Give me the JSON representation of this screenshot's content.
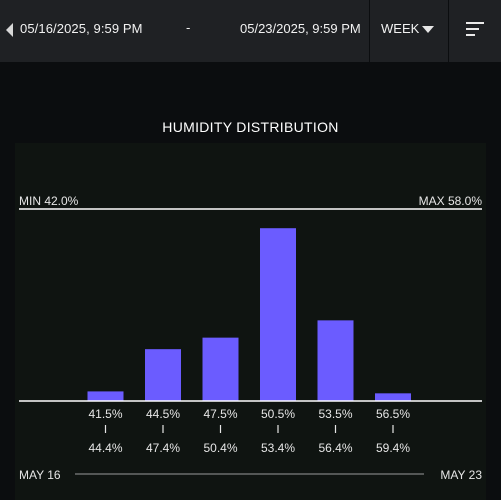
{
  "header": {
    "start_date": "05/16/2025, 9:59 PM",
    "separator": "-",
    "end_date": "05/23/2025, 9:59 PM",
    "period": "WEEK",
    "icons": {
      "prev": "chevron-left-icon",
      "period": "caret-down-icon",
      "sort": "sort-icon"
    }
  },
  "chart_data": {
    "type": "bar",
    "title": "HUMIDITY DISTRIBUTION",
    "min_label": "MIN 42.0%",
    "max_label": "MAX 58.0%",
    "bins": [
      {
        "low": "41.5%",
        "high": "44.4%",
        "value": 5
      },
      {
        "low": "44.5%",
        "high": "47.4%",
        "value": 27
      },
      {
        "low": "47.5%",
        "high": "50.4%",
        "value": 33
      },
      {
        "low": "50.5%",
        "high": "53.4%",
        "value": 90
      },
      {
        "low": "53.5%",
        "high": "56.4%",
        "value": 42
      },
      {
        "low": "56.5%",
        "high": "59.4%",
        "value": 4
      }
    ],
    "ylim": [
      0,
      100
    ],
    "timeline": {
      "start": "MAY 16",
      "end": "MAY 23"
    },
    "colors": {
      "bar": "#6b5cff",
      "line": "#ffffff"
    }
  }
}
